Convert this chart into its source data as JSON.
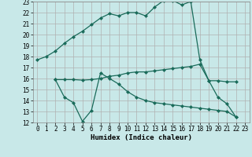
{
  "xlabel": "Humidex (Indice chaleur)",
  "xlim": [
    -0.5,
    23.5
  ],
  "ylim": [
    12,
    23
  ],
  "yticks": [
    12,
    13,
    14,
    15,
    16,
    17,
    18,
    19,
    20,
    21,
    22,
    23
  ],
  "xticks": [
    0,
    1,
    2,
    3,
    4,
    5,
    6,
    7,
    8,
    9,
    10,
    11,
    12,
    13,
    14,
    15,
    16,
    17,
    18,
    19,
    20,
    21,
    22,
    23
  ],
  "bg_color": "#c8e8e8",
  "grid_color": "#b0b0b0",
  "line_color": "#1a6b5a",
  "line1_x": [
    0,
    1,
    2,
    3,
    4,
    5,
    6,
    7,
    8,
    9,
    10,
    11,
    12,
    13,
    14,
    15,
    16,
    17,
    18,
    19,
    20,
    21,
    22
  ],
  "line1_y": [
    17.7,
    18.0,
    18.5,
    19.2,
    19.8,
    20.3,
    20.9,
    21.5,
    21.9,
    21.7,
    22.0,
    22.0,
    21.7,
    22.5,
    23.1,
    23.1,
    22.7,
    23.0,
    17.7,
    15.8,
    14.3,
    13.7,
    12.5
  ],
  "line2_x": [
    2,
    3,
    4,
    5,
    6,
    7,
    8,
    9,
    10,
    11,
    12,
    13,
    14,
    15,
    16,
    17,
    18,
    19,
    20,
    21,
    22
  ],
  "line2_y": [
    15.9,
    15.9,
    15.9,
    15.85,
    15.9,
    16.0,
    16.2,
    16.3,
    16.5,
    16.6,
    16.6,
    16.7,
    16.8,
    16.9,
    17.0,
    17.1,
    17.3,
    15.8,
    15.8,
    15.7,
    15.7
  ],
  "line3_x": [
    2,
    3,
    4,
    5,
    6,
    7,
    8,
    9,
    10,
    11,
    12,
    13,
    14,
    15,
    16,
    17,
    18,
    19,
    20,
    21,
    22
  ],
  "line3_y": [
    15.9,
    14.3,
    13.8,
    12.1,
    13.1,
    16.5,
    16.0,
    15.5,
    14.8,
    14.3,
    14.0,
    13.8,
    13.7,
    13.6,
    13.5,
    13.4,
    13.3,
    13.2,
    13.1,
    13.0,
    12.5
  ],
  "marker_size": 2.5,
  "linewidth": 0.9,
  "tick_fontsize": 5.5,
  "xlabel_fontsize": 6.5
}
